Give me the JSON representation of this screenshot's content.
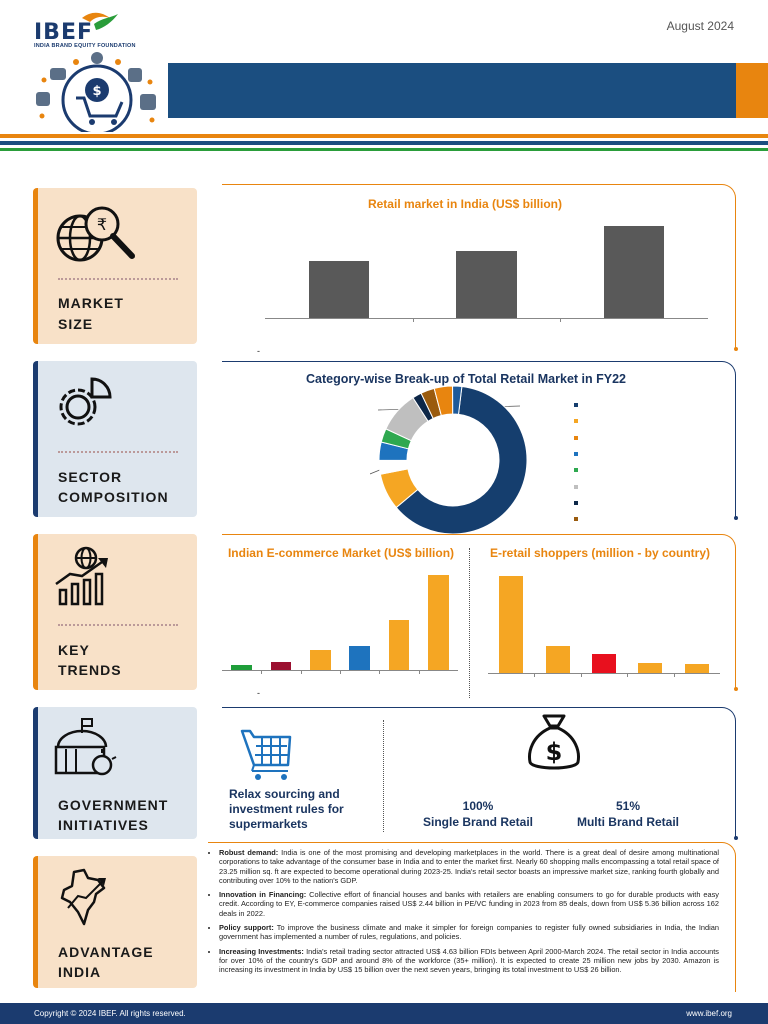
{
  "header": {
    "brand": "IBEF",
    "brand_sub": "INDIA BRAND EQUITY FOUNDATION",
    "date": "August 2024"
  },
  "sections": {
    "market_size": [
      "MARKET",
      "SIZE"
    ],
    "sector_composition": [
      "SECTOR",
      "COMPOSITION"
    ],
    "key_trends": [
      "KEY",
      "TRENDS"
    ],
    "government_initiatives": [
      "GOVERNMENT",
      "INITIATIVES"
    ],
    "advantage_india": [
      "ADVANTAGE",
      "INDIA"
    ]
  },
  "market_chart": {
    "title": "Retail market in India (US$ billion)",
    "foot_note": "-"
  },
  "composition_chart": {
    "title": "Category-wise Break-up of Total Retail Market in FY22"
  },
  "ecommerce_chart": {
    "title": "Indian E-commerce Market (US$ billion)",
    "foot_note": "-"
  },
  "shoppers_chart": {
    "title": "E-retail shoppers (million - by country)"
  },
  "gov": {
    "sourcing_text": "Relax sourcing and investment rules for supermarkets",
    "single_pct": "100%",
    "single_label": "Single Brand Retail",
    "multi_pct": "51%",
    "multi_label": "Multi Brand Retail"
  },
  "advantage": [
    {
      "head": "Robust demand:",
      "text": " India is one of the most promising and developing marketplaces in the world. There is a great deal of desire among multinational corporations to take advantage of the consumer base in India and to enter the market first. Nearly 60 shopping malls encompassing a total retail space of 23.25 million sq. ft are expected to become operational during 2023-25. India's retail sector boasts an impressive market size, ranking fourth globally and contributing over 10% to the nation's GDP."
    },
    {
      "head": "Innovation in Financing:",
      "text": " Collective effort of financial houses and banks with retailers are enabling consumers to go for durable products with easy credit. According to EY, E-commerce companies raised US$ 2.44 billion in PE/VC funding in 2023 from 85 deals, down from US$ 5.36 billion across 162 deals in 2022."
    },
    {
      "head": "Policy support:",
      "text": " To improve the business climate and make it simpler for foreign companies to register fully owned subsidiaries in India, the Indian government has implemented a number of rules, regulations, and policies."
    },
    {
      "head": "Increasing Investments:",
      "text": " India's retail trading sector attracted US$ 4.63 billion FDIs between April 2000-March 2024. The retail sector in India accounts for over 10% of the country's GDP and around 8% of the workforce (35+ million). It is expected to create 25 million new jobs by 2030. Amazon is increasing its investment in India by US$ 15 billion over the next seven years, bringing its total investment to US$ 26 billion."
    }
  ],
  "footer": {
    "copyright": "Copyright © 2024 IBEF. All rights reserved.",
    "url": "www.ibef.org"
  },
  "colors": {
    "navy": "#1b3b6f",
    "orange": "#e8850f",
    "green": "#2a9d3a",
    "bar_grey": "#595959"
  },
  "chart_data": [
    {
      "type": "bar",
      "title": "Retail market in India (US$ billion)",
      "values": [
        55,
        64,
        88
      ],
      "ylim": [
        0,
        100
      ],
      "colors": [
        "#595959",
        "#595959",
        "#595959"
      ]
    },
    {
      "type": "pie",
      "title": "Category-wise Break-up of Total Retail Market in FY22",
      "values": [
        62,
        8,
        3,
        4,
        3,
        9,
        2,
        3,
        4,
        2
      ],
      "colors": [
        "#153e6e",
        "#f5a623",
        "#ffffff",
        "#1e73be",
        "#2ea84f",
        "#bfbfbf",
        "#0d2748",
        "#9a5b0e",
        "#e8850f",
        "#1e5a9a"
      ]
    },
    {
      "type": "bar",
      "title": "Indian E-commerce Market (US$ billion)",
      "values": [
        4,
        6,
        15,
        18,
        38,
        72
      ],
      "ylim": [
        0,
        80
      ],
      "colors": [
        "#1f9e3a",
        "#9b1030",
        "#f5a623",
        "#1e73be",
        "#f5a623",
        "#f5a623"
      ]
    },
    {
      "type": "bar",
      "title": "E-retail shoppers (million - by country)",
      "values": [
        250,
        70,
        50,
        25,
        22
      ],
      "ylim": [
        0,
        280
      ],
      "colors": [
        "#f5a623",
        "#f5a623",
        "#e8101e",
        "#f5a623",
        "#f5a623"
      ]
    }
  ]
}
